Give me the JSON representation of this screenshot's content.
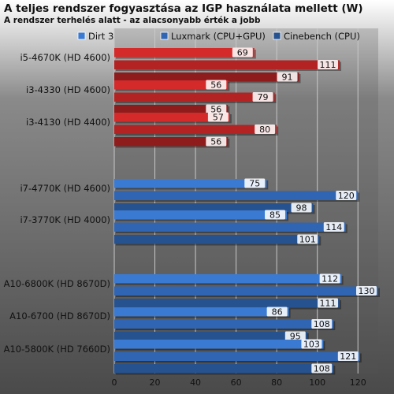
{
  "chart_data": {
    "type": "bar",
    "orientation": "horizontal",
    "title": "A teljes rendszer fogyasztása az IGP használata mellett (W)",
    "subtitle": "A rendszer terhelés alatt - az alacsonyabb érték a jobb",
    "xlim": [
      0,
      130
    ],
    "x_ticks": [
      0,
      20,
      40,
      60,
      80,
      100,
      120
    ],
    "grid": true,
    "legend_position": "top-right",
    "series": [
      {
        "name": "Dirt 3"
      },
      {
        "name": "Luxmark (CPU+GPU)"
      },
      {
        "name": "Cinebench (CPU)"
      }
    ],
    "groups": [
      {
        "brand": "intel-igp",
        "items": [
          {
            "label": "i5-4670K (HD 4600)",
            "values": [
              69,
              111,
              91
            ]
          },
          {
            "label": "i3-4330 (HD 4600)",
            "values": [
              56,
              79,
              56
            ]
          },
          {
            "label": "i3-4130 (HD 4400)",
            "values": [
              57,
              80,
              56
            ]
          }
        ]
      },
      {
        "brand": "intel-igp-2",
        "items": [
          {
            "label": "i7-4770K (HD 4600)",
            "values": [
              75,
              120,
              98
            ]
          },
          {
            "label": "i7-3770K (HD 4000)",
            "values": [
              85,
              114,
              101
            ]
          }
        ]
      },
      {
        "brand": "amd-apu",
        "items": [
          {
            "label": "A10-6800K (HD 8670D)",
            "values": [
              112,
              130,
              111
            ]
          },
          {
            "label": "A10-6700 (HD 8670D)",
            "values": [
              86,
              108,
              95
            ]
          },
          {
            "label": "A10-5800K (HD 7660D)",
            "values": [
              103,
              121,
              108
            ]
          }
        ]
      }
    ]
  },
  "colors": {
    "background_top": "#ffffff",
    "plot_background": "#525252",
    "grid": "#c8c8c8",
    "red_series": [
      "#d42a2a",
      "#b32323",
      "#8f1c1c"
    ],
    "blue_series": [
      "#3b7ad2",
      "#2f65b3",
      "#26528f"
    ],
    "legend_swatches": [
      "#3b7ad2",
      "#2f65b3",
      "#26528f"
    ]
  }
}
